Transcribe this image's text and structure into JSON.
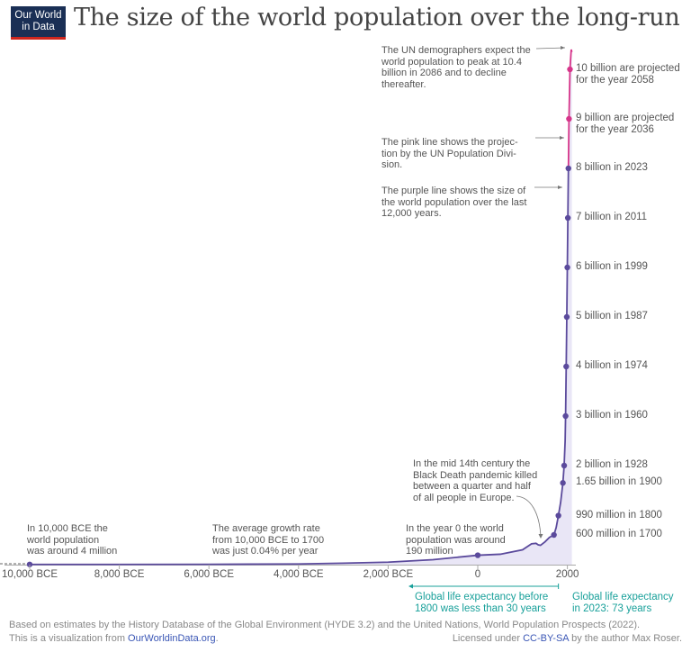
{
  "logo": {
    "line1": "Our World",
    "line2": "in Data"
  },
  "title": "The size of the world population over the long-run",
  "chart_data": {
    "type": "line",
    "title": "The size of the world population over the long-run",
    "xlabel": "",
    "ylabel": "",
    "xlim": [
      -10600,
      2100
    ],
    "ylim": [
      0,
      10.5
    ],
    "grid": false,
    "x_ticks": [
      {
        "value": -10000,
        "label": "10,000 BCE"
      },
      {
        "value": -8000,
        "label": "8,000 BCE"
      },
      {
        "value": -6000,
        "label": "6,000 BCE"
      },
      {
        "value": -4000,
        "label": "4,000 BCE"
      },
      {
        "value": -2000,
        "label": "2,000 BCE"
      },
      {
        "value": 0,
        "label": "0"
      },
      {
        "value": 2000,
        "label": "2000"
      }
    ],
    "series": [
      {
        "color": "#5b4a9c",
        "unit": "billion",
        "x": [
          -10000,
          -8000,
          -6000,
          -5000,
          -4000,
          -3000,
          -2000,
          -1000,
          0,
          500,
          1000,
          1200,
          1300,
          1350,
          1400,
          1500,
          1600,
          1700,
          1750,
          1800,
          1850,
          1900,
          1928,
          1950,
          1960,
          1974,
          1987,
          1999,
          2011,
          2023
        ],
        "y": [
          0.004,
          0.005,
          0.007,
          0.01,
          0.014,
          0.03,
          0.05,
          0.1,
          0.19,
          0.21,
          0.3,
          0.42,
          0.43,
          0.4,
          0.39,
          0.46,
          0.55,
          0.6,
          0.75,
          0.99,
          1.26,
          1.65,
          2,
          2.5,
          3,
          4,
          5,
          6,
          7,
          8
        ]
      },
      {
        "color": "#d6358a",
        "unit": "billion",
        "x": [
          2023,
          2036,
          2058,
          2086,
          2100
        ],
        "y": [
          8,
          9,
          10,
          10.4,
          10.35
        ]
      }
    ],
    "points": [
      {
        "x": -10000,
        "y": 0.004,
        "label": ""
      },
      {
        "x": 0,
        "y": 0.19,
        "label": ""
      },
      {
        "x": 1700,
        "y": 0.6,
        "label": "600 million in 1700"
      },
      {
        "x": 1800,
        "y": 0.99,
        "label": "990 million in 1800"
      },
      {
        "x": 1900,
        "y": 1.65,
        "label": "1.65 billion in 1900"
      },
      {
        "x": 1928,
        "y": 2,
        "label": "2 billion in 1928"
      },
      {
        "x": 1960,
        "y": 3,
        "label": "3 billion in 1960"
      },
      {
        "x": 1974,
        "y": 4,
        "label": "4 billion in 1974"
      },
      {
        "x": 1987,
        "y": 5,
        "label": "5 billion in 1987"
      },
      {
        "x": 1999,
        "y": 6,
        "label": "6 billion in 1999"
      },
      {
        "x": 2011,
        "y": 7,
        "label": "7 billion in 2011"
      },
      {
        "x": 2023,
        "y": 8,
        "label": "8 billion in 2023"
      },
      {
        "x": 2036,
        "y": 9,
        "label": "9 billion are projected\nfor the year 2036",
        "projected": true
      },
      {
        "x": 2058,
        "y": 10,
        "label": "10 billion are projected\nfor the year 2058",
        "projected": true
      }
    ],
    "annotations": {
      "peak": "The UN demographers expect the\nworld population to peak at 10.4\nbillion in 2086 and to decline\nthereafter.",
      "pink": "The pink line shows the projec-\ntion by the UN Population Divi-\nsion.",
      "purple": "The purple line shows the size of\nthe world population over the last\n12,000 years.",
      "black_death": "In the mid 14th century the\nBlack Death pandemic killed\nbetween a quarter and half\nof all people in Europe.",
      "year0": "In the year 0 the world\npopulation was around\n190 million",
      "growth": "The average growth rate\nfrom 10,000 BCE to 1700\nwas just 0.04% per year",
      "bce10000": "In 10,000 BCE the\nworld population\nwas around 4 million",
      "life_before": "Global life expectancy before\n1800 was less than 30 years",
      "life_2023": "Global life expectancy\nin 2023: 73 years"
    },
    "colors": {
      "historical": "#5b4a9c",
      "projection": "#d6358a",
      "fill": "#e9e6f6",
      "life_expectancy": "#18a09a"
    }
  },
  "footer": {
    "source": "Based on estimates by the History Database of the Global Environment (HYDE 3.2) and the United Nations, World Population Prospects (2022).",
    "viz_prefix": "This is a visualization from ",
    "viz_link": "OurWorldinData.org",
    "viz_suffix": ".",
    "license_prefix": "Licensed under ",
    "license_link": "CC-BY-SA",
    "license_suffix": " by the author Max Roser."
  }
}
